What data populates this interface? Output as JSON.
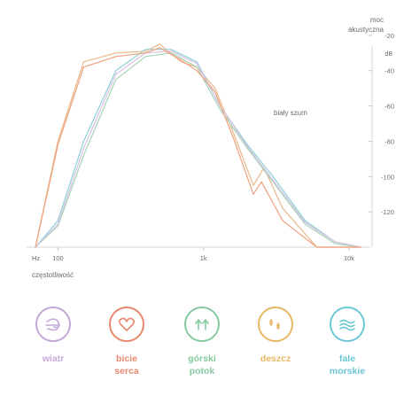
{
  "chart_data": {
    "type": "line",
    "xscale": "log",
    "xlim": [
      70,
      14000
    ],
    "ylim": [
      -140,
      0
    ],
    "x_unit": "Hz",
    "x_ticks": [
      {
        "v": 100,
        "label": "100"
      },
      {
        "v": 1000,
        "label": "1k"
      },
      {
        "v": 10000,
        "label": "10k"
      }
    ],
    "y_unit": "dB",
    "y_ticks": [
      -20,
      -40,
      -60,
      -80,
      -100,
      -120
    ],
    "xlabel": "częstotliwość",
    "ylabel": "moc\nakustyczna",
    "annotation": "biały szum",
    "series": [
      {
        "color": "#e8b98a",
        "x": [
          70,
          100,
          150,
          250,
          400,
          500,
          700,
          900,
          1200,
          1600,
          2200,
          2600,
          3500,
          6000,
          12000
        ],
        "y": [
          -140,
          -80,
          -35,
          -30,
          -29,
          -25,
          -35,
          -38,
          -50,
          -75,
          -105,
          -95,
          -118,
          -140,
          -140
        ]
      },
      {
        "color": "#8fcfd9",
        "x": [
          70,
          100,
          150,
          250,
          400,
          600,
          900,
          1300,
          2000,
          3000,
          5000,
          8000,
          12000
        ],
        "y": [
          -140,
          -125,
          -80,
          -40,
          -28,
          -28,
          -35,
          -60,
          -82,
          -100,
          -125,
          -137,
          -140
        ]
      },
      {
        "color": "#a6d4b4",
        "x": [
          70,
          100,
          150,
          250,
          400,
          600,
          900,
          1300,
          2000,
          3000,
          5000,
          8000,
          12000
        ],
        "y": [
          -140,
          -128,
          -88,
          -45,
          -32,
          -30,
          -38,
          -62,
          -84,
          -103,
          -127,
          -138,
          -140
        ]
      },
      {
        "color": "#d8c1e2",
        "x": [
          70,
          100,
          150,
          250,
          400,
          600,
          900,
          1300,
          2000,
          3000,
          5000,
          8000,
          12000
        ],
        "y": [
          -140,
          -127,
          -84,
          -42,
          -30,
          -29,
          -36,
          -60,
          -83,
          -102,
          -126,
          -137,
          -140
        ]
      },
      {
        "color": "#efa07e",
        "x": [
          70,
          100,
          150,
          250,
          400,
          500,
          700,
          900,
          1200,
          1600,
          2200,
          2500,
          3500,
          6000,
          12000
        ],
        "y": [
          -140,
          -82,
          -38,
          -32,
          -30,
          -27,
          -34,
          -40,
          -52,
          -78,
          -110,
          -103,
          -125,
          -140,
          -140
        ]
      }
    ]
  },
  "icons": [
    {
      "name": "wind-icon",
      "label": "wiatr",
      "color": "#c4a8d6"
    },
    {
      "name": "heart-icon",
      "label": "bicie\nserca",
      "color": "#e8886e"
    },
    {
      "name": "stream-icon",
      "label": "górski\npotok",
      "color": "#86c9a0"
    },
    {
      "name": "rain-icon",
      "label": "deszcz",
      "color": "#e8b763"
    },
    {
      "name": "waves-icon",
      "label": "fale\nmorskie",
      "color": "#6cc7d6"
    }
  ]
}
